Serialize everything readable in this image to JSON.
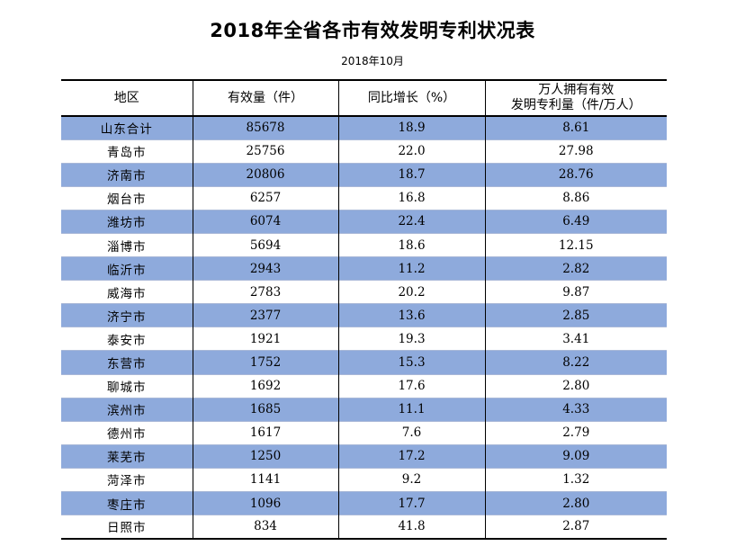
{
  "title": "2018年全省各市有效发明专利状况表",
  "subtitle": "2018年10月",
  "table": {
    "headers": [
      "地区",
      "有效量（件）",
      "同比增长（%）",
      "万人拥有有效\n发明专利量（件/万人）"
    ],
    "rows": [
      [
        "山东合计",
        "85678",
        "18.9",
        "8.61"
      ],
      [
        "青岛市",
        "25756",
        "22.0",
        "27.98"
      ],
      [
        "济南市",
        "20806",
        "18.7",
        "28.76"
      ],
      [
        "烟台市",
        "6257",
        "16.8",
        "8.86"
      ],
      [
        "潍坊市",
        "6074",
        "22.4",
        "6.49"
      ],
      [
        "淄博市",
        "5694",
        "18.6",
        "12.15"
      ],
      [
        "临沂市",
        "2943",
        "11.2",
        "2.82"
      ],
      [
        "威海市",
        "2783",
        "20.2",
        "9.87"
      ],
      [
        "济宁市",
        "2377",
        "13.6",
        "2.85"
      ],
      [
        "泰安市",
        "1921",
        "19.3",
        "3.41"
      ],
      [
        "东营市",
        "1752",
        "15.3",
        "8.22"
      ],
      [
        "聊城市",
        "1692",
        "17.6",
        "2.80"
      ],
      [
        "滨州市",
        "1685",
        "11.1",
        "4.33"
      ],
      [
        "德州市",
        "1617",
        "7.6",
        "2.79"
      ],
      [
        "莱芜市",
        "1250",
        "17.2",
        "9.09"
      ],
      [
        "菏泽市",
        "1141",
        "9.2",
        "1.32"
      ],
      [
        "枣庄市",
        "1096",
        "17.7",
        "2.80"
      ],
      [
        "日照市",
        "834",
        "41.8",
        "2.87"
      ]
    ]
  },
  "colors": {
    "stripe": "#8eaadc",
    "rule": "#000000"
  }
}
